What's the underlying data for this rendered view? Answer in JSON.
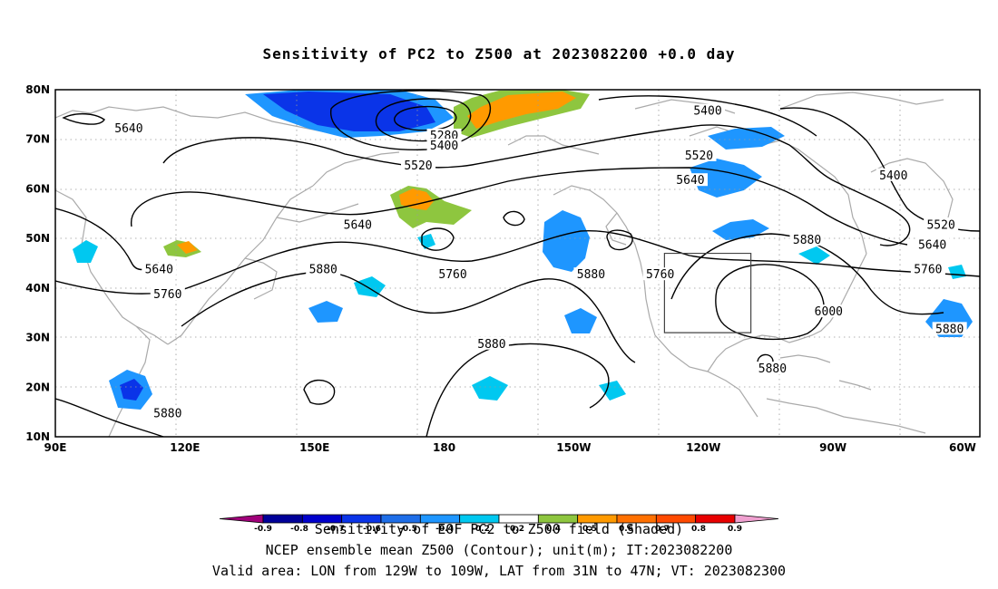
{
  "title": "Sensitivity of PC2 to Z500 at 2023082200 +0.0 day",
  "map": {
    "lon_range": [
      90,
      304
    ],
    "lat_range": [
      10,
      80
    ],
    "lat_ticks": [
      {
        "lat": 80,
        "label": "80N"
      },
      {
        "lat": 70,
        "label": "70N"
      },
      {
        "lat": 60,
        "label": "60N"
      },
      {
        "lat": 50,
        "label": "50N"
      },
      {
        "lat": 40,
        "label": "40N"
      },
      {
        "lat": 30,
        "label": "30N"
      },
      {
        "lat": 20,
        "label": "20N"
      },
      {
        "lat": 10,
        "label": "10N"
      }
    ],
    "lon_ticks": [
      {
        "lon": 90,
        "label": "90E"
      },
      {
        "lon": 120,
        "label": "120E"
      },
      {
        "lon": 150,
        "label": "150E"
      },
      {
        "lon": 180,
        "label": "180"
      },
      {
        "lon": 210,
        "label": "150W"
      },
      {
        "lon": 240,
        "label": "120W"
      },
      {
        "lon": 270,
        "label": "90W"
      },
      {
        "lon": 300,
        "label": "60W"
      }
    ],
    "valid_box": {
      "lon_min": 231,
      "lon_max": 251,
      "lat_min": 31,
      "lat_max": 47
    },
    "contour_labels": [
      {
        "text": "5640",
        "lon": 107,
        "lat": 72
      },
      {
        "text": "5280",
        "lon": 180,
        "lat": 70.5
      },
      {
        "text": "5400",
        "lon": 180,
        "lat": 68.5
      },
      {
        "text": "5520",
        "lon": 174,
        "lat": 64.5
      },
      {
        "text": "5400",
        "lon": 241,
        "lat": 75.5
      },
      {
        "text": "5520",
        "lon": 239,
        "lat": 66.5
      },
      {
        "text": "5640",
        "lon": 237,
        "lat": 61.5
      },
      {
        "text": "5400",
        "lon": 284,
        "lat": 62.5
      },
      {
        "text": "5520",
        "lon": 295,
        "lat": 52.5
      },
      {
        "text": "5640",
        "lon": 293,
        "lat": 48.5
      },
      {
        "text": "5760",
        "lon": 292,
        "lat": 43.5
      },
      {
        "text": "5880",
        "lon": 264,
        "lat": 49.5
      },
      {
        "text": "5640",
        "lon": 160,
        "lat": 52.5
      },
      {
        "text": "5640",
        "lon": 114,
        "lat": 43.5
      },
      {
        "text": "5880",
        "lon": 152,
        "lat": 43.5
      },
      {
        "text": "5760",
        "lon": 182,
        "lat": 42.5
      },
      {
        "text": "5880",
        "lon": 214,
        "lat": 42.5
      },
      {
        "text": "5760",
        "lon": 230,
        "lat": 42.5
      },
      {
        "text": "5760",
        "lon": 116,
        "lat": 38.5
      },
      {
        "text": "6000",
        "lon": 269,
        "lat": 35
      },
      {
        "text": "5880",
        "lon": 297,
        "lat": 31.5
      },
      {
        "text": "5880",
        "lon": 191,
        "lat": 28.5
      },
      {
        "text": "5880",
        "lon": 256,
        "lat": 23.5
      },
      {
        "text": "5880",
        "lon": 116,
        "lat": 14.5
      }
    ],
    "colors": {
      "strong_negative": "#0a34e8",
      "negative": "#1e96ff",
      "weak_negative": "#00c8f0",
      "weak_positive": "#8ec63f",
      "positive": "#ff9a00",
      "strong_positive": "#ff4a00"
    }
  },
  "colorbar": {
    "ticks": [
      "-0.9",
      "-0.8",
      "-0.7",
      "-0.6",
      "-0.5",
      "-0.4",
      "-0.2",
      "0.2",
      "0.4",
      "0.5",
      "0.6",
      "0.7",
      "0.8",
      "0.9"
    ],
    "colors": [
      "#a0007a",
      "#000099",
      "#0000cc",
      "#0a34e8",
      "#1e6ee8",
      "#1e96ff",
      "#00c8f0",
      "#ffffff",
      "#8ec63f",
      "#ff9a00",
      "#ff7000",
      "#ff4a00",
      "#e80000",
      "#f0a0d0"
    ]
  },
  "footer": {
    "line1": "Sensitivity of EOF PC2 to Z500 field (Shaded)",
    "line2": "NCEP ensemble mean Z500 (Contour); unit(m); IT:2023082200",
    "line3": "Valid area: LON from 129W to 109W, LAT from 31N to 47N; VT: 2023082300"
  }
}
